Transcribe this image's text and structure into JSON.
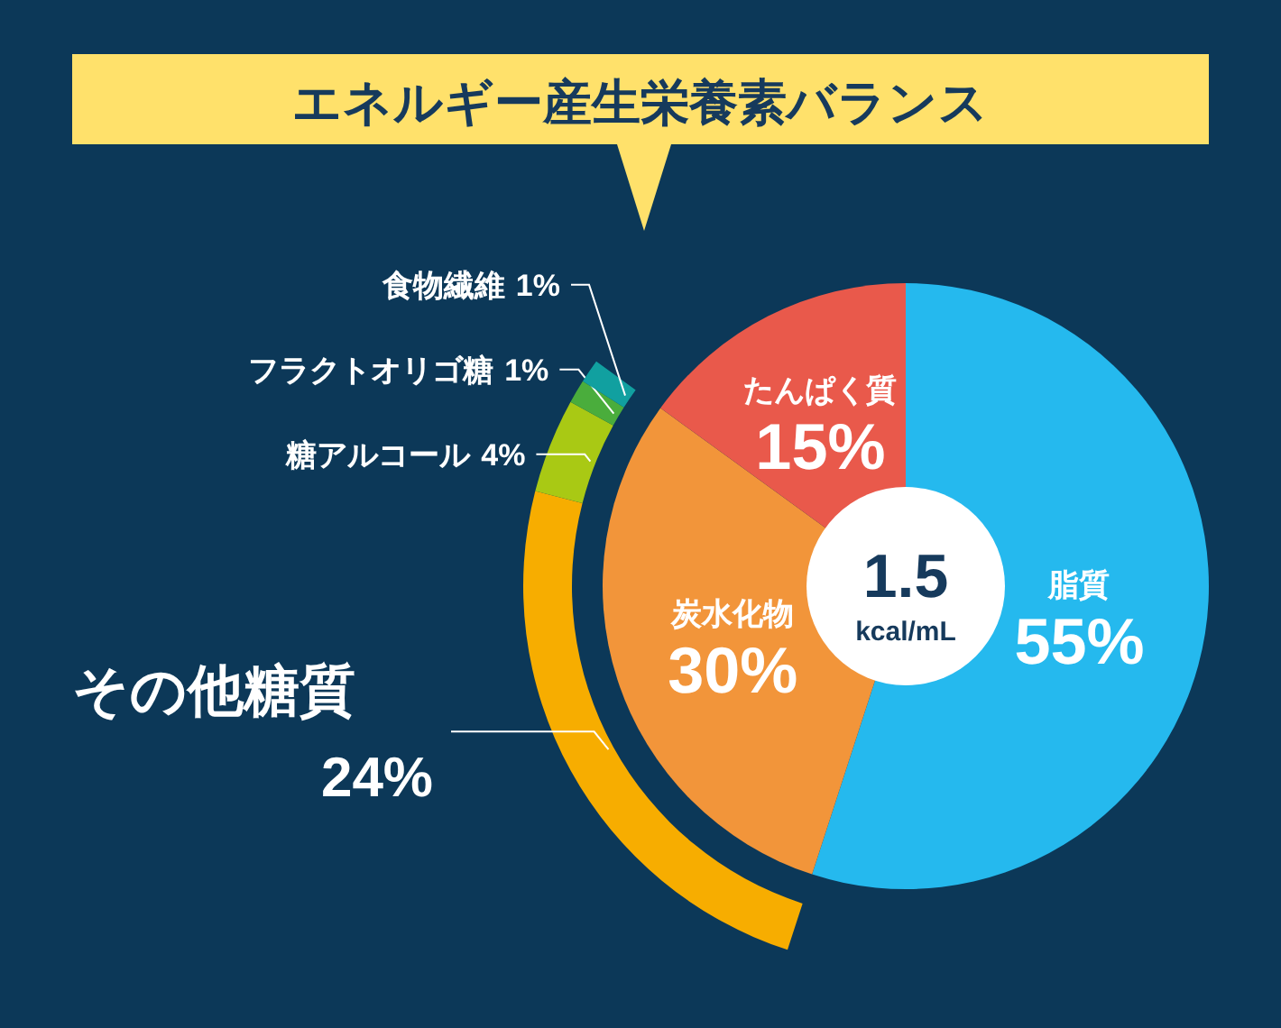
{
  "chart_data": [
    {
      "type": "donut",
      "title": "エネルギー産生栄養素バランス",
      "categories": [
        "脂質",
        "炭水化物",
        "たんぱく質"
      ],
      "values": [
        55,
        30,
        15
      ],
      "colors": [
        "#25b9ee",
        "#f2953a",
        "#e9594b"
      ],
      "value_labels": [
        "55%",
        "30%",
        "15%"
      ],
      "annotations": [
        "1.5 kcal/mL"
      ]
    },
    {
      "type": "donut",
      "categories": [
        "その他糖質",
        "糖アルコール",
        "フラクトオリゴ糖",
        "食物繊維"
      ],
      "values": [
        24,
        4,
        1,
        1
      ],
      "colors": [
        "#f7ad00",
        "#a9c914",
        "#4aad3c",
        "#11a0a0"
      ],
      "value_labels": [
        "24%",
        "4%",
        "1%",
        "1%"
      ]
    }
  ]
}
